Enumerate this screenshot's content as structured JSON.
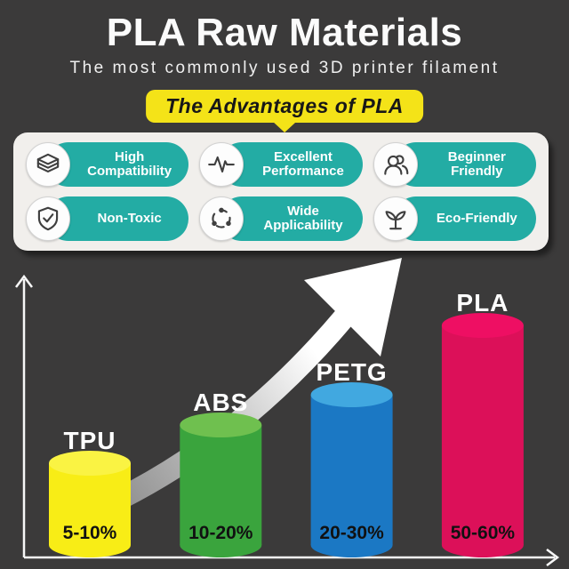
{
  "header": {
    "title": "PLA Raw Materials",
    "subtitle": "The most commonly used 3D printer filament"
  },
  "banner": {
    "label": "The Advantages of PLA"
  },
  "advantages": {
    "items": [
      {
        "id": "high-compatibility",
        "label": "High Compatibility",
        "icon": "stacked-box-icon"
      },
      {
        "id": "excellent-performance",
        "label": "Excellent Performance",
        "icon": "pulse-icon"
      },
      {
        "id": "beginner-friendly",
        "label": "Beginner Friendly",
        "icon": "users-icon"
      },
      {
        "id": "non-toxic",
        "label": "Non-Toxic",
        "icon": "shield-check-icon"
      },
      {
        "id": "wide-applicability",
        "label": "Wide Applicability",
        "icon": "share-network-icon"
      },
      {
        "id": "eco-friendly",
        "label": "Eco-Friendly",
        "icon": "sprout-icon"
      }
    ]
  },
  "theme": {
    "background": "#3b3a3a",
    "panel": "#f1efec",
    "badge_teal": "#23aca4",
    "banner_yellow": "#f4e318",
    "title_color": "#fbfbfb",
    "axis_color": "#f7f7f7"
  },
  "chart_data": {
    "type": "bar",
    "variant": "3d-cylinder",
    "title": "",
    "xlabel": "",
    "ylabel": "",
    "categories": [
      "TPU",
      "ABS",
      "PETG",
      "PLA"
    ],
    "value_labels": [
      "5-10%",
      "10-20%",
      "20-30%",
      "50-60%"
    ],
    "values_range_percent": [
      [
        5,
        10
      ],
      [
        10,
        20
      ],
      [
        20,
        30
      ],
      [
        50,
        60
      ]
    ],
    "values_mid_percent": [
      7.5,
      15,
      25,
      55
    ],
    "bar_colors": [
      {
        "body": "#f8ed16",
        "top": "#faf343"
      },
      {
        "body": "#3aa43d",
        "top": "#6fc04f"
      },
      {
        "body": "#1b78c4",
        "top": "#41a8e0"
      },
      {
        "body": "#dc1059",
        "top": "#ee0f63"
      }
    ],
    "category_label_color": "#ffffff",
    "value_label_color": "#111111",
    "axes": {
      "x_arrow": true,
      "y_arrow": true,
      "ticks": false,
      "grid": false
    },
    "trend_arrow": {
      "present": true,
      "direction": "up-right",
      "tail_color": "#787878",
      "head_color": "#ffffff"
    }
  }
}
